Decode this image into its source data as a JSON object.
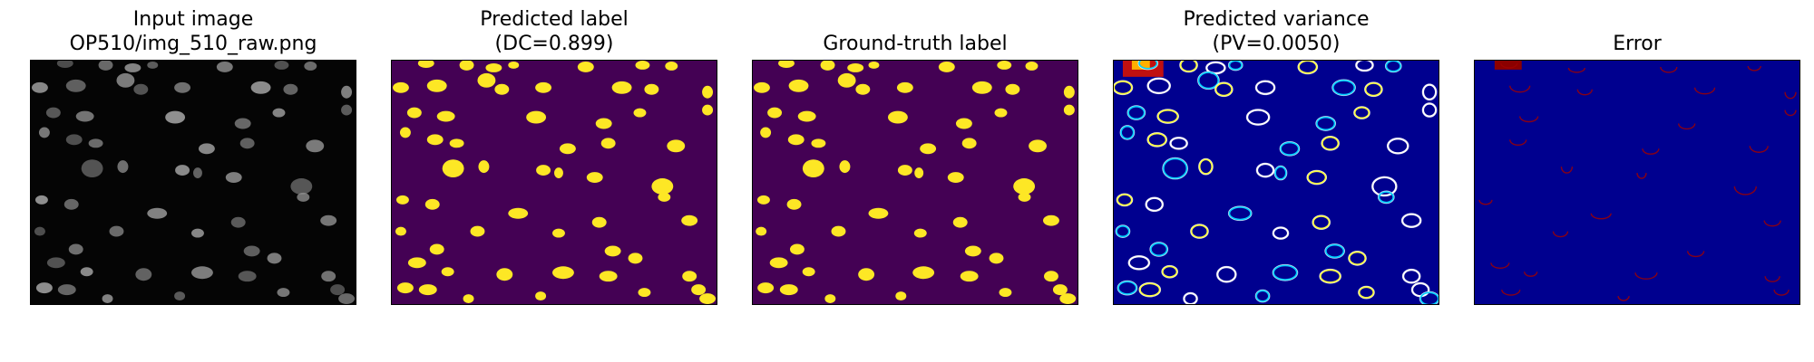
{
  "figure": {
    "panels": [
      {
        "id": "input",
        "title_line1": "Input image",
        "title_line2": "OP510/img_510_raw.png",
        "background": "#050505",
        "blob_color": "#8a8a8a"
      },
      {
        "id": "pred",
        "title_line1": "Predicted label",
        "title_line2": "(DC=0.899)",
        "background": "#440154",
        "blob_color": "#fde725"
      },
      {
        "id": "gt",
        "title_line1": "Ground-truth label",
        "title_line2": "",
        "background": "#440154",
        "blob_color": "#fde725"
      },
      {
        "id": "var",
        "title_line1": "Predicted variance",
        "title_line2": "(PV=0.0050)",
        "background": "#00008f",
        "ring_colors": [
          "#00cfff",
          "#ffff40",
          "#ffffff"
        ]
      },
      {
        "id": "err",
        "title_line1": "Error",
        "title_line2": "",
        "background": "#00008f",
        "ring_color": "#a00000"
      }
    ]
  }
}
